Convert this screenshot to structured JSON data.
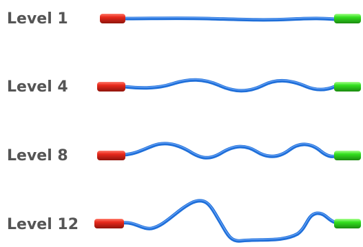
{
  "levels": [
    {
      "label": "Level 1"
    },
    {
      "label": "Level 4"
    },
    {
      "label": "Level 8"
    },
    {
      "label": "Level 12"
    }
  ],
  "colors": {
    "label_text": "#555555",
    "cable": "#1f6fd9",
    "cable_highlight": "#7fb4ff",
    "left_connector": "#e8291c",
    "right_connector": "#33e01f"
  },
  "icons": {
    "left_connector": "red-connector-cylinder",
    "right_connector": "green-connector-cylinder",
    "cable": "wavy-blue-cable"
  }
}
